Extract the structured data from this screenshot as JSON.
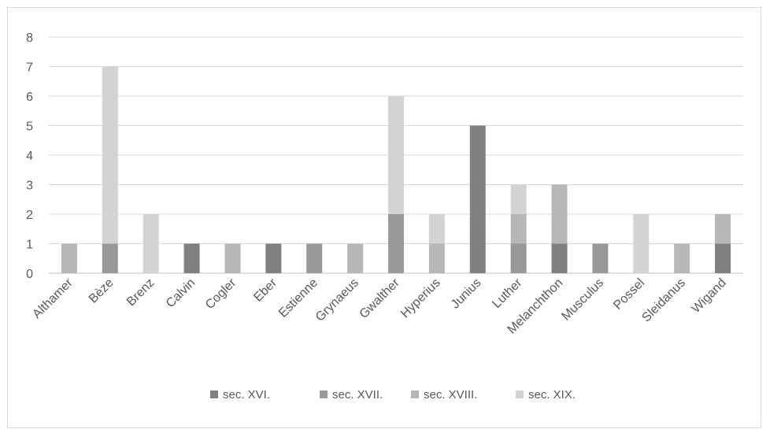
{
  "chart_data": {
    "type": "bar",
    "stacked": true,
    "categories": [
      "Althamer",
      "Bèze",
      "Brenz",
      "Calvin",
      "Cogler",
      "Eber",
      "Estienne",
      "Grynaeus",
      "Gwalther",
      "Hyperius",
      "Junius",
      "Luther",
      "Melanchthon",
      "Musculus",
      "Possel",
      "Sleidanus",
      "Wigand"
    ],
    "series": [
      {
        "name": "sec. XVI.",
        "color": "#808080",
        "values": [
          0,
          0,
          0,
          1,
          0,
          1,
          0,
          0,
          0,
          0,
          5,
          0,
          1,
          0,
          0,
          0,
          1
        ]
      },
      {
        "name": "sec. XVII.",
        "color": "#999999",
        "values": [
          0,
          1,
          0,
          0,
          0,
          0,
          1,
          0,
          2,
          0,
          0,
          1,
          0,
          1,
          0,
          0,
          0
        ]
      },
      {
        "name": "sec. XVIII.",
        "color": "#b7b7b7",
        "values": [
          1,
          0,
          0,
          0,
          1,
          0,
          0,
          1,
          0,
          1,
          0,
          1,
          2,
          0,
          0,
          1,
          1
        ]
      },
      {
        "name": "sec. XIX.",
        "color": "#d3d3d3",
        "values": [
          0,
          6,
          2,
          0,
          0,
          0,
          0,
          0,
          4,
          1,
          0,
          1,
          0,
          0,
          2,
          0,
          0
        ]
      }
    ],
    "ylim": [
      0,
      8
    ],
    "yticks": [
      "0",
      "1",
      "2",
      "3",
      "4",
      "5",
      "6",
      "7",
      "8"
    ],
    "grid": true,
    "legend_position": "bottom",
    "title": "",
    "xlabel": "",
    "ylabel": ""
  }
}
